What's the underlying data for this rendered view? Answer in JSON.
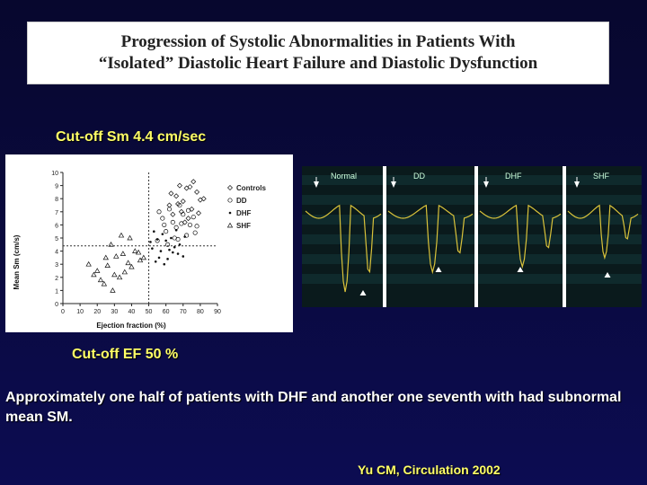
{
  "title": {
    "line1": "Progression of Systolic Abnormalities in Patients With",
    "line2": "“Isolated” Diastolic Heart Failure and Diastolic Dysfunction"
  },
  "cutoff_sm": "Cut-off Sm 4.4 cm/sec",
  "cutoff_ef": "Cut-off EF 50 %",
  "summary": "Approximately one half of patients with DHF and another one seventh with had subnormal mean SM.",
  "citation": "Yu CM, Circulation 2002",
  "scatter": {
    "ylabel": "Mean Sm (cm/s)",
    "xlabel": "Ejection fraction (%)",
    "yticks": [
      "0",
      "1",
      "2",
      "3",
      "4",
      "5",
      "6",
      "7",
      "8",
      "9",
      "10"
    ],
    "xticks": [
      "0",
      "10",
      "20",
      "30",
      "40",
      "50",
      "60",
      "70",
      "80",
      "90"
    ],
    "legend": [
      "Controls",
      "DD",
      "DHF",
      "SHF"
    ]
  },
  "echo": {
    "labels": [
      "Normal",
      "DD",
      "DHF",
      "SHF"
    ]
  },
  "chart_data": {
    "type": "scatter",
    "xlabel": "Ejection fraction (%)",
    "ylabel": "Mean Sm (cm/s)",
    "xlim": [
      0,
      90
    ],
    "ylim": [
      0,
      10
    ],
    "cutoffs": {
      "x": 50,
      "y": 4.4
    },
    "series": [
      {
        "name": "Controls",
        "points": [
          [
            62,
            7.5
          ],
          [
            66,
            8.2
          ],
          [
            70,
            7.8
          ],
          [
            72,
            8.8
          ],
          [
            75,
            7.2
          ],
          [
            78,
            8.5
          ],
          [
            64,
            6.8
          ],
          [
            68,
            9.0
          ],
          [
            80,
            7.9
          ],
          [
            73,
            6.5
          ],
          [
            76,
            9.3
          ],
          [
            69,
            7.0
          ],
          [
            71,
            6.2
          ],
          [
            82,
            8.0
          ],
          [
            67,
            7.6
          ],
          [
            74,
            8.9
          ],
          [
            79,
            6.9
          ],
          [
            63,
            8.4
          ]
        ]
      },
      {
        "name": "DD",
        "points": [
          [
            58,
            6.5
          ],
          [
            62,
            7.2
          ],
          [
            66,
            5.8
          ],
          [
            70,
            6.8
          ],
          [
            74,
            6.0
          ],
          [
            60,
            5.5
          ],
          [
            68,
            7.5
          ],
          [
            72,
            5.2
          ],
          [
            64,
            6.2
          ],
          [
            76,
            6.6
          ],
          [
            56,
            7.0
          ],
          [
            78,
            5.9
          ],
          [
            55,
            4.8
          ],
          [
            61,
            4.5
          ],
          [
            65,
            5.0
          ],
          [
            69,
            6.1
          ],
          [
            73,
            7.1
          ],
          [
            77,
            5.4
          ],
          [
            59,
            6.0
          ],
          [
            67,
            4.9
          ]
        ]
      },
      {
        "name": "DHF",
        "points": [
          [
            52,
            4.2
          ],
          [
            56,
            3.5
          ],
          [
            60,
            4.8
          ],
          [
            64,
            3.9
          ],
          [
            58,
            5.3
          ],
          [
            62,
            4.1
          ],
          [
            66,
            5.6
          ],
          [
            54,
            3.2
          ],
          [
            68,
            4.5
          ],
          [
            70,
            3.6
          ],
          [
            57,
            4.0
          ],
          [
            63,
            5.0
          ],
          [
            51,
            4.7
          ],
          [
            59,
            3.0
          ],
          [
            65,
            4.3
          ],
          [
            71,
            5.1
          ],
          [
            53,
            5.5
          ],
          [
            61,
            3.4
          ],
          [
            67,
            3.8
          ],
          [
            55,
            4.9
          ]
        ]
      },
      {
        "name": "SHF",
        "points": [
          [
            15,
            3.0
          ],
          [
            20,
            2.5
          ],
          [
            25,
            3.5
          ],
          [
            30,
            2.2
          ],
          [
            35,
            3.8
          ],
          [
            40,
            2.8
          ],
          [
            45,
            3.3
          ],
          [
            22,
            1.8
          ],
          [
            28,
            4.5
          ],
          [
            33,
            2.0
          ],
          [
            38,
            3.1
          ],
          [
            42,
            4.0
          ],
          [
            18,
            2.2
          ],
          [
            26,
            2.9
          ],
          [
            31,
            3.6
          ],
          [
            36,
            2.4
          ],
          [
            44,
            3.9
          ],
          [
            24,
            1.5
          ],
          [
            29,
            1.0
          ],
          [
            34,
            5.2
          ],
          [
            39,
            5.0
          ],
          [
            47,
            3.5
          ]
        ]
      }
    ]
  }
}
